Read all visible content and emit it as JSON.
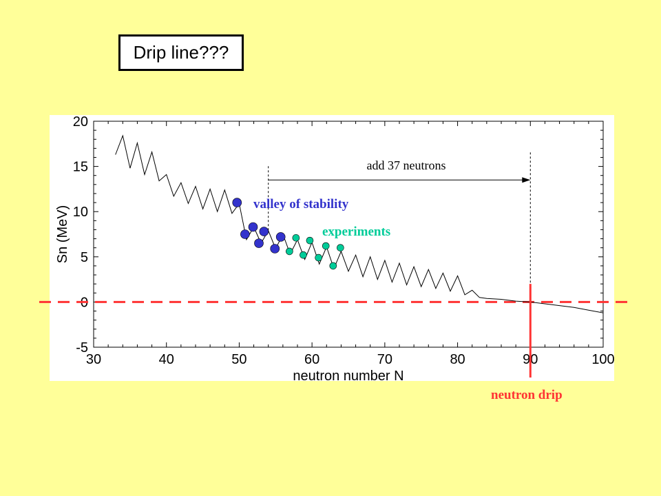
{
  "slide": {
    "title": "Drip line???",
    "drip_label": "neutron drip"
  },
  "chart_data": {
    "type": "line",
    "xlabel": "neutron number N",
    "ylabel": "Sn (MeV)",
    "xlim": [
      30,
      100
    ],
    "ylim": [
      -5,
      20
    ],
    "xticks": [
      "30",
      "40",
      "50",
      "60",
      "70",
      "80",
      "90",
      "100"
    ],
    "yticks": [
      "-5",
      "0",
      "5",
      "10",
      "15",
      "20"
    ],
    "series": [
      {
        "type": "line",
        "color": "#000000",
        "x": [
          33,
          34,
          35,
          36,
          37,
          38,
          39,
          40,
          41,
          42,
          43,
          44,
          45,
          46,
          47,
          48,
          49,
          50,
          51,
          52,
          53,
          54,
          55,
          56,
          57,
          58,
          59,
          60,
          61,
          62,
          63,
          64,
          65,
          66,
          67,
          68,
          69,
          70,
          71,
          72,
          73,
          74,
          75,
          76,
          77,
          78,
          79,
          80,
          81,
          82,
          83,
          84,
          86,
          88,
          90,
          92,
          94,
          96,
          98,
          100
        ],
        "y": [
          16.3,
          18.4,
          14.8,
          17.6,
          14.1,
          16.6,
          13.4,
          14.1,
          11.7,
          13.2,
          10.9,
          12.8,
          10.3,
          12.5,
          10.0,
          12.4,
          9.8,
          10.9,
          6.9,
          8.3,
          6.5,
          7.9,
          5.9,
          7.5,
          5.3,
          6.9,
          4.7,
          6.6,
          4.2,
          6.1,
          3.7,
          5.6,
          3.4,
          5.2,
          2.8,
          5.0,
          2.5,
          4.6,
          2.2,
          4.3,
          1.9,
          3.9,
          1.7,
          3.6,
          1.5,
          3.2,
          1.2,
          2.9,
          0.8,
          1.3,
          0.5,
          0.4,
          0.3,
          0.1,
          0.0,
          -0.2,
          -0.4,
          -0.6,
          -0.9,
          -1.2
        ]
      },
      {
        "name": "valley of stability",
        "type": "scatter",
        "color": "#3333cc",
        "x": [
          49.7,
          50.8,
          51.9,
          52.7,
          53.4,
          54.9,
          55.7
        ],
        "y": [
          11.0,
          7.5,
          8.3,
          6.5,
          7.8,
          5.9,
          7.2
        ]
      },
      {
        "name": "experiments",
        "type": "scatter",
        "color": "#00cc99",
        "x": [
          56.9,
          57.8,
          58.8,
          59.7,
          60.9,
          61.9,
          62.9,
          63.9
        ],
        "y": [
          5.6,
          7.1,
          5.2,
          6.8,
          4.9,
          6.2,
          4.0,
          6.0
        ]
      }
    ],
    "annotations": {
      "arrow_text": "add 37 neutrons",
      "arrow_from_x": 54,
      "arrow_to_x": 90,
      "arrow_y": 13.5,
      "drip_x": 90
    },
    "colors": {
      "plot_bg": "#ffffff",
      "zero_line": "#ff3333",
      "valley": "#3333cc",
      "experiments": "#00cc99",
      "drip": "#ff3333"
    }
  }
}
